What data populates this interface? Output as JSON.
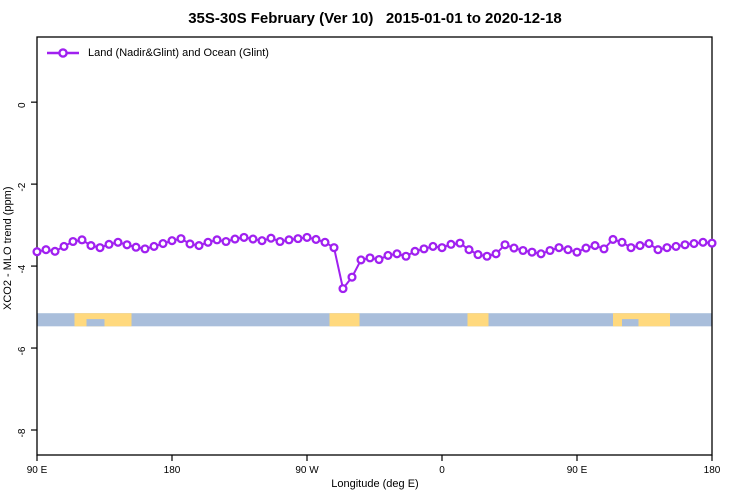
{
  "chart_data": {
    "type": "line",
    "title": "35S-30S February (Ver 10)   2015-01-01 to 2020-12-18",
    "xlabel": "Longitude (deg E)",
    "ylabel": "XCO2 - MLO trend (ppm)",
    "legend": {
      "position": "top-left",
      "entries": [
        {
          "label": "Land (Nadir&Glint) and Ocean (Glint)",
          "color": "#A020F0",
          "marker": "open-circle"
        }
      ]
    },
    "x_axis": {
      "note": "longitude wraps eastward starting at 90E; offsets are degrees east of 90E",
      "xlim_offset_deg": [
        0,
        450
      ],
      "ticks_offset_deg": [
        0,
        90,
        180,
        270,
        360,
        450
      ],
      "tick_labels": [
        "90 E",
        "180",
        "90 W",
        "0",
        "90 E",
        "180"
      ]
    },
    "y_axis": {
      "ylim": [
        1.59,
        -8.61
      ],
      "ticks": [
        0,
        -2,
        -4,
        -6,
        -8
      ],
      "tick_labels": [
        "0",
        "-2",
        "-4",
        "-6",
        "-8"
      ]
    },
    "series": [
      {
        "name": "Land (Nadir&Glint) and Ocean (Glint)",
        "color": "#A020F0",
        "marker": "open-circle",
        "x_start_offset_deg": 0,
        "x_step_deg": 6,
        "y_ppm": [
          -3.65,
          -3.6,
          -3.64,
          -3.52,
          -3.4,
          -3.36,
          -3.5,
          -3.55,
          -3.47,
          -3.42,
          -3.48,
          -3.54,
          -3.58,
          -3.52,
          -3.45,
          -3.38,
          -3.33,
          -3.46,
          -3.5,
          -3.42,
          -3.36,
          -3.4,
          -3.34,
          -3.3,
          -3.34,
          -3.38,
          -3.32,
          -3.4,
          -3.36,
          -3.33,
          -3.3,
          -3.35,
          -3.42,
          -3.55,
          -4.55,
          -4.27,
          -3.85,
          -3.8,
          -3.84,
          -3.74,
          -3.7,
          -3.76,
          -3.64,
          -3.58,
          -3.52,
          -3.55,
          -3.47,
          -3.44,
          -3.6,
          -3.72,
          -3.76,
          -3.7,
          -3.48,
          -3.56,
          -3.62,
          -3.66,
          -3.7,
          -3.62,
          -3.55,
          -3.6,
          -3.66,
          -3.56,
          -3.5,
          -3.58,
          -3.35,
          -3.42,
          -3.55,
          -3.5,
          -3.45,
          -3.6,
          -3.55,
          -3.52,
          -3.48,
          -3.45,
          -3.42,
          -3.44
        ]
      }
    ],
    "land_ocean_band": {
      "y_range_ppm": [
        -5.15,
        -5.47
      ],
      "ocean_color": "#A9BEDB",
      "land_color": "#FFD97E",
      "land_patches_offset_deg": [
        [
          25,
          63
        ],
        [
          195,
          215
        ],
        [
          287,
          301
        ],
        [
          384,
          422
        ]
      ],
      "ocean_notches_offset_deg": [
        [
          33,
          45
        ],
        [
          390,
          401
        ]
      ]
    }
  }
}
